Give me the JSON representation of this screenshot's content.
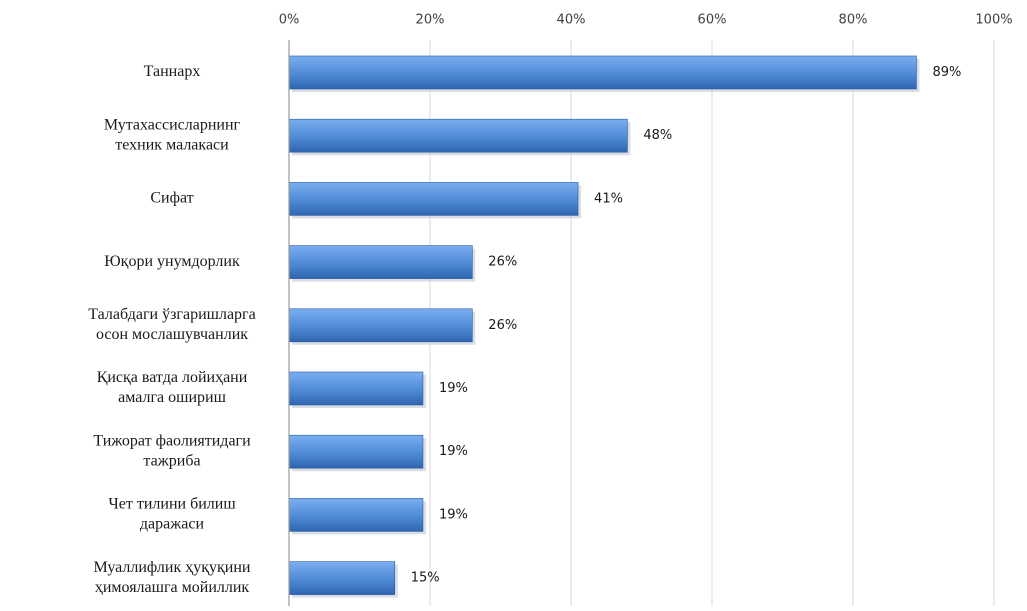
{
  "chart_data": {
    "type": "bar",
    "orientation": "horizontal",
    "categories": [
      [
        "Таннарх"
      ],
      [
        "Мутахассисларнинг",
        "техник малакаси"
      ],
      [
        "Сифат"
      ],
      [
        "Юқори унумдорлик"
      ],
      [
        "Талабдаги ўзгаришларга",
        "осон мослашувчанлик"
      ],
      [
        "Қисқа ватда лойиҳани",
        "амалга ошириш"
      ],
      [
        "Тижорат фаолиятидаги",
        "тажриба"
      ],
      [
        "Чет тилини билиш",
        "даражаси"
      ],
      [
        "Муаллифлик ҳуқуқини",
        "ҳимоялашга мойиллик"
      ]
    ],
    "values": [
      89,
      48,
      41,
      26,
      26,
      19,
      19,
      19,
      15
    ],
    "data_labels": [
      "89%",
      "48%",
      "41%",
      "26%",
      "26%",
      "19%",
      "19%",
      "19%",
      "15%"
    ],
    "xlim": [
      0,
      100
    ],
    "ticks": [
      0,
      20,
      40,
      60,
      80,
      100
    ],
    "tick_labels": [
      "0%",
      "20%",
      "40%",
      "60%",
      "80%",
      "100%"
    ],
    "axis_position": "top",
    "grid": true,
    "legend": "none",
    "bar_color": "#4f8ad6",
    "bar_color_dark": "#2f65b0",
    "title": "",
    "xlabel": "",
    "ylabel": ""
  }
}
